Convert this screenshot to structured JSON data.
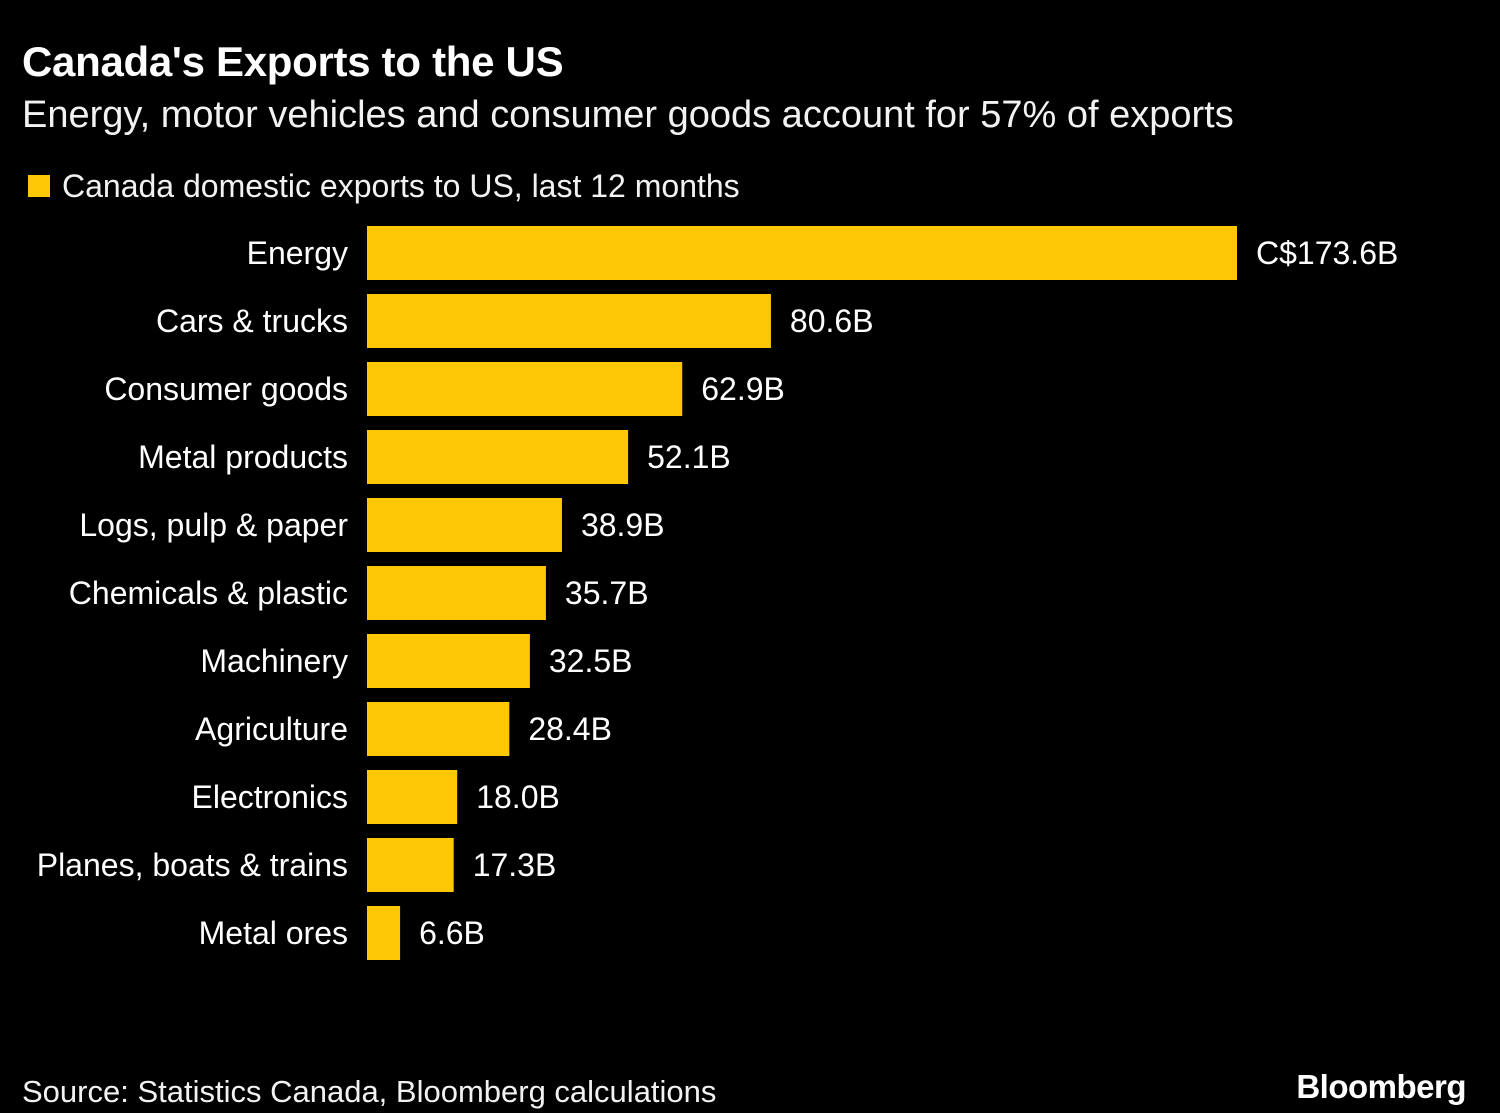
{
  "chart_data": {
    "type": "bar",
    "orientation": "horizontal",
    "title": "Canada's Exports to the US",
    "subtitle": "Energy, motor vehicles and consumer goods account for 57% of exports",
    "categories": [
      "Energy",
      "Cars & trucks",
      "Consumer goods",
      "Metal products",
      "Logs, pulp & paper",
      "Chemicals & plastic",
      "Machinery",
      "Agriculture",
      "Electronics",
      "Planes, boats & trains",
      "Metal ores"
    ],
    "series": [
      {
        "name": "Canada domestic exports to US, last 12 months",
        "values": [
          173.6,
          80.6,
          62.9,
          52.1,
          38.9,
          35.7,
          32.5,
          28.4,
          18.0,
          17.3,
          6.6
        ],
        "data_labels": [
          "C$173.6B",
          "80.6B",
          "62.9B",
          "52.1B",
          "38.9B",
          "35.7B",
          "32.5B",
          "28.4B",
          "18.0B",
          "17.3B",
          "6.6B"
        ],
        "color": "#FFC807"
      }
    ],
    "xlabel": "",
    "ylabel": "",
    "xlim": [
      0,
      173.6
    ],
    "grid": false,
    "legend": "top-left"
  },
  "source": "Source: Statistics Canada, Bloomberg calculations",
  "brand": "Bloomberg",
  "colors": {
    "background": "#000000",
    "bar": "#FFC807",
    "text": "#FFFFFF"
  }
}
